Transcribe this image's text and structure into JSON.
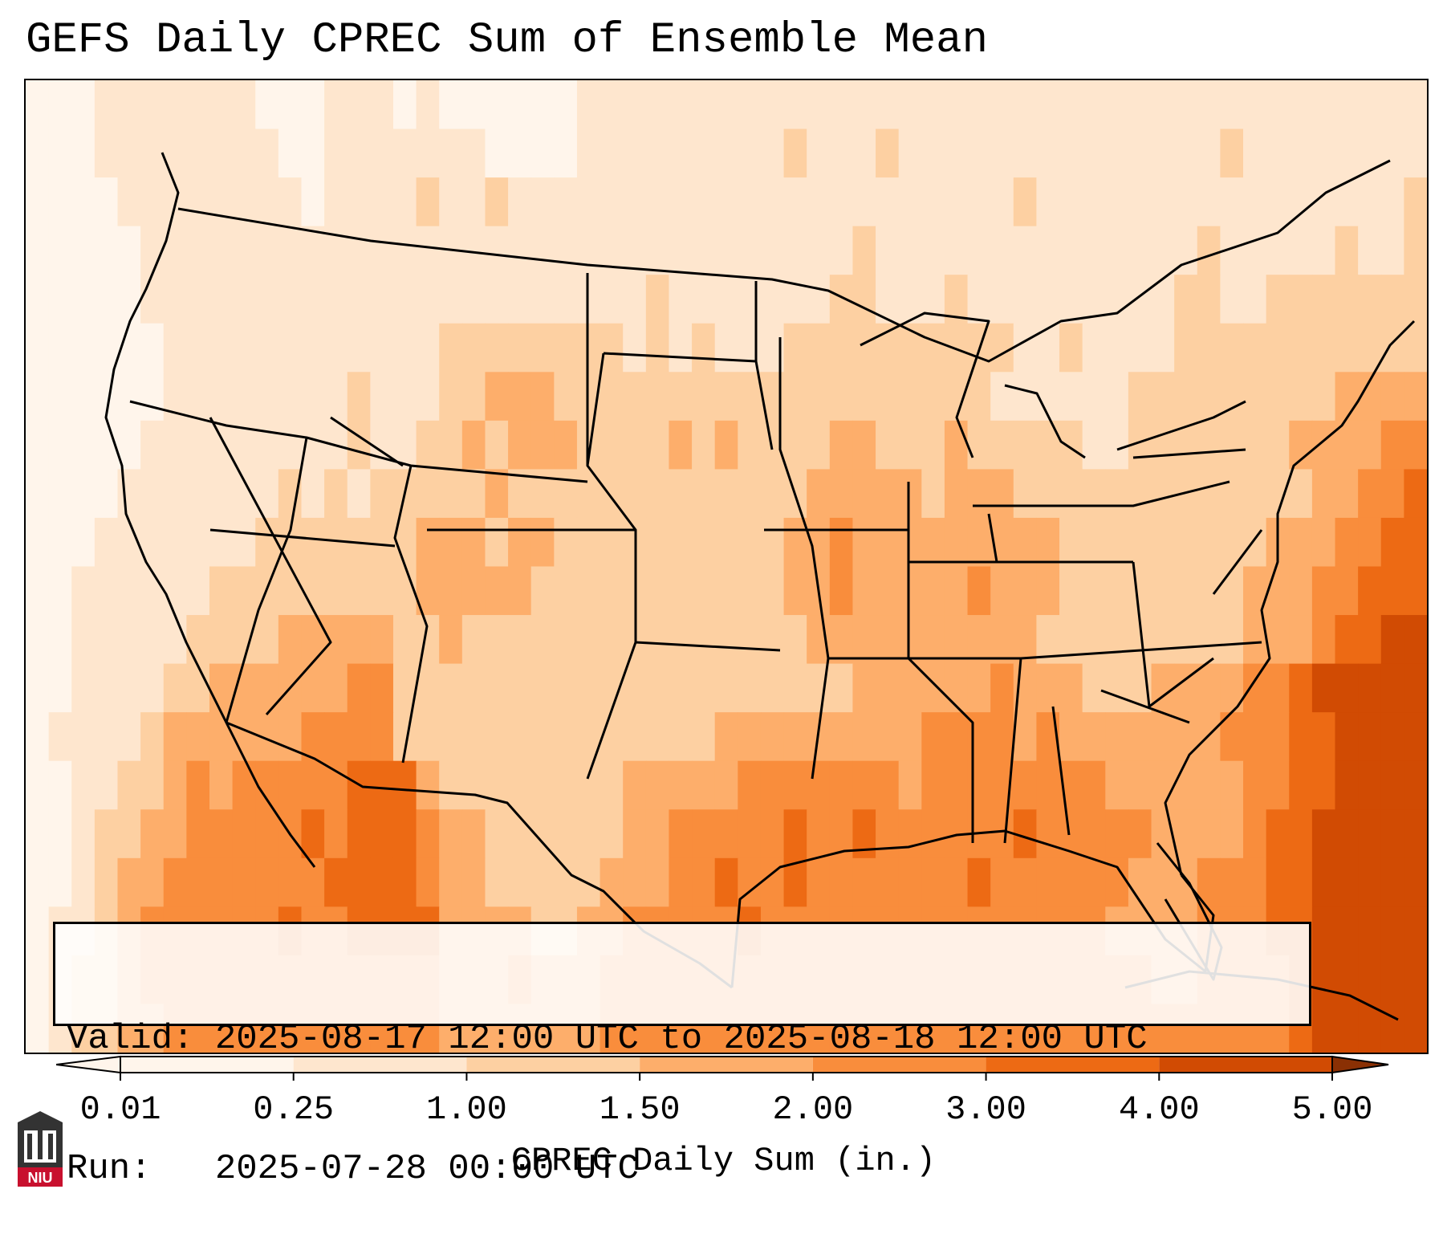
{
  "title": "GEFS Daily CPREC Sum of Ensemble Mean",
  "info": {
    "valid_label": "Valid:",
    "valid_value": "2025-08-17 12:00 UTC to 2025-08-18 12:00 UTC",
    "run_label": "Run:",
    "run_value": "2025-07-28 00:00 UTC"
  },
  "colorbar": {
    "label": "CPREC Daily Sum (in.)",
    "ticks": [
      "0.01",
      "0.25",
      "1.00",
      "1.50",
      "2.00",
      "3.00",
      "4.00",
      "5.00"
    ],
    "colors": [
      "#fff5eb",
      "#fee6ce",
      "#fdd0a2",
      "#fdae6b",
      "#f98d3c",
      "#ed6a14",
      "#d14b03",
      "#8a3004"
    ]
  },
  "logo": {
    "text": "NIU",
    "colors": {
      "red": "#c8102e",
      "dark": "#333333"
    }
  },
  "chart_data": {
    "type": "heatmap",
    "title": "GEFS Daily CPREC Sum of Ensemble Mean",
    "variable": "CPREC Daily Sum (in.)",
    "levels": [
      0.01,
      0.25,
      1.0,
      1.5,
      2.0,
      3.0,
      4.0,
      5.0
    ],
    "region": "Contiguous United States, northern Mexico, Gulf of Mexico, western Atlantic",
    "grid_rows": [
      "0001111111000111010000001111111111111111111111111111111111111",
      "0001111111100111111100001111111112111211111111111111211111111",
      "0000111111110111121121111111111111111111111211111111111111112",
      "0000011111111111111111111111111111112111111111111112111112112",
      "0000011111111111111111111112111111122111211111111122112222222",
      "0000001111111111112222222212121112222222222112111122222222222",
      "0000001111111121112233322222222222222222221111112222222223333",
      "0000011111111121122323332222323222233222322222112222222333344",
      "0000111111121212222232222222222222333332333222222222222233445",
      "0001111111222222233323322222222223343333333332222222223334455",
      "0011111122222222233333222222222223343333343332222222233344555",
      "0011111222233333223222222222222222333333333322222222233345566",
      "0011112233333344222222222222222222223333334333222333344566666",
      "0111123333334444222222222222223333333334444343333333444556666",
      "0011223434444455532222222233333444444434444444433333344556666",
      "0012233444445455543322222233444445445444444544444333345566666",
      "0012334444444555543322222333445445444444454444443334445566666",
      "0112344444454455553333223344444544444444444444433334445566666",
      "0122344444444444443334333444444444444444444444444334444566666",
      "0122334444444444443333333444444444444444444444444444444566666"
    ]
  }
}
